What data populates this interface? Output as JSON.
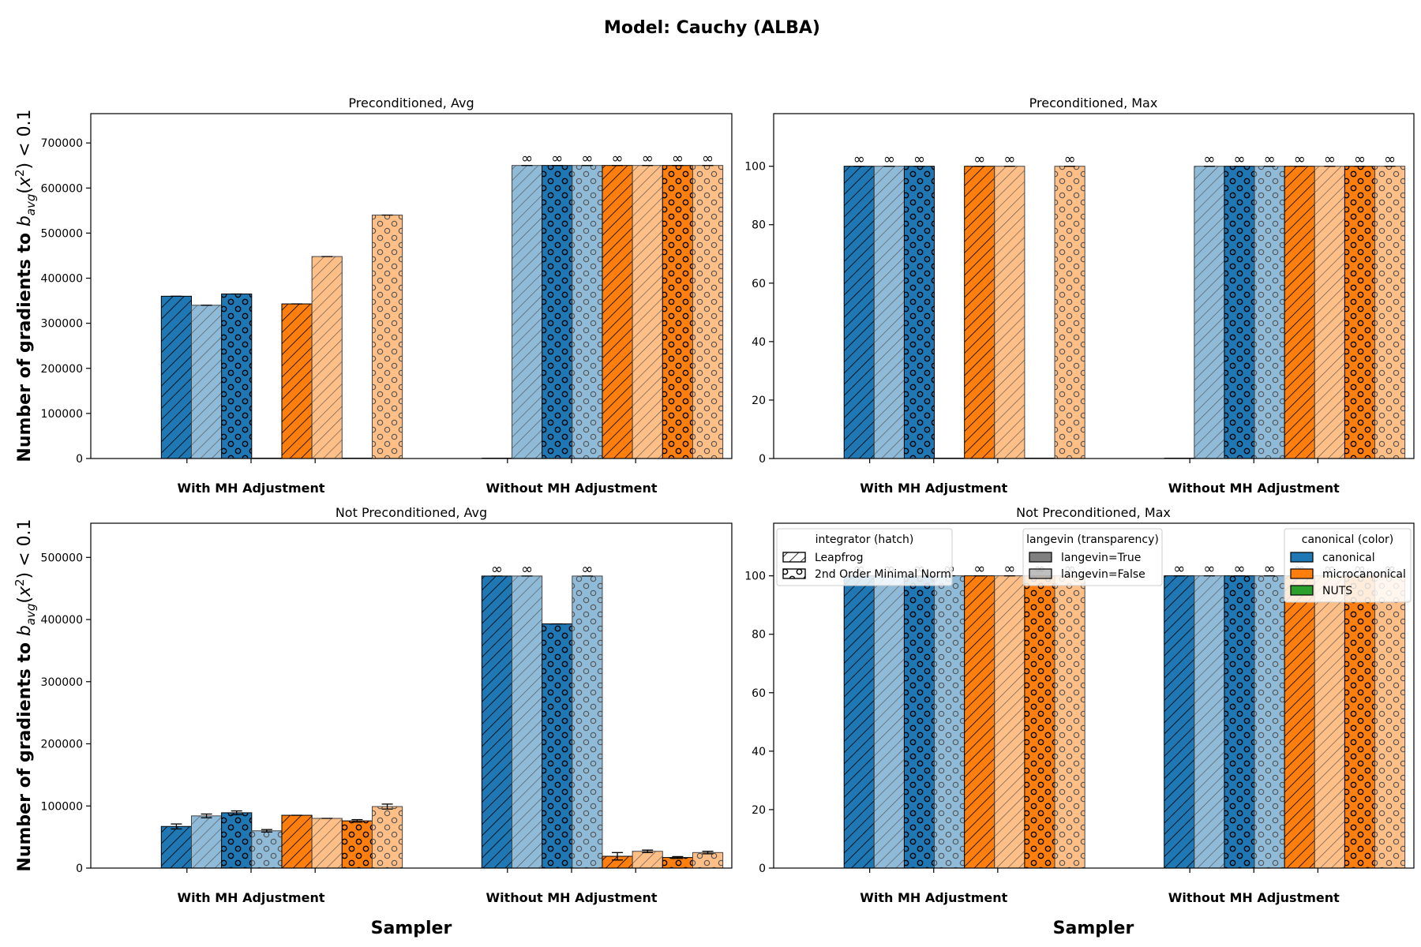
{
  "figure": {
    "title": "Model: Cauchy (ALBA)"
  },
  "colors": {
    "canonical": "#1f77b4",
    "canonical_light": "#8fbbd9",
    "microcanonical": "#ff7f0e",
    "microcanonical_light": "#ffbf86",
    "nuts": "#2ca02c"
  },
  "chart_data": [
    {
      "type": "bar",
      "title": "Preconditioned, Avg",
      "xlabel": "",
      "ylabel": "Number of gradients to b_avg(x²) < 0.1",
      "categories": [
        "With MH Adjustment",
        "Without MH Adjustment"
      ],
      "ylim": [
        0,
        765000
      ],
      "yticks": [
        0,
        100000,
        200000,
        300000,
        400000,
        500000,
        600000,
        700000
      ],
      "ytick_labels": [
        "0",
        "100000",
        "200000",
        "300000",
        "400000",
        "500000",
        "600000",
        "700000"
      ],
      "series": [
        {
          "color": "canonical",
          "hatch": "leapfrog",
          "langevin": true,
          "values": [
            360000,
            0
          ],
          "infinite": [
            false,
            false
          ],
          "error": [
            0,
            0
          ]
        },
        {
          "color": "canonical",
          "hatch": "leapfrog",
          "langevin": false,
          "values": [
            340000,
            650000
          ],
          "infinite": [
            false,
            true
          ],
          "error": [
            0,
            0
          ]
        },
        {
          "color": "canonical",
          "hatch": "minimal_norm",
          "langevin": true,
          "values": [
            365000,
            650000
          ],
          "infinite": [
            false,
            true
          ],
          "error": [
            0,
            0
          ]
        },
        {
          "color": "canonical",
          "hatch": "minimal_norm",
          "langevin": false,
          "values": [
            0,
            650000
          ],
          "infinite": [
            false,
            true
          ],
          "error": [
            0,
            0
          ]
        },
        {
          "color": "microcanonical",
          "hatch": "leapfrog",
          "langevin": true,
          "values": [
            343000,
            650000
          ],
          "infinite": [
            false,
            true
          ],
          "error": [
            0,
            0
          ]
        },
        {
          "color": "microcanonical",
          "hatch": "leapfrog",
          "langevin": false,
          "values": [
            448000,
            650000
          ],
          "infinite": [
            false,
            true
          ],
          "error": [
            0,
            0
          ]
        },
        {
          "color": "microcanonical",
          "hatch": "minimal_norm",
          "langevin": true,
          "values": [
            0,
            650000
          ],
          "infinite": [
            false,
            true
          ],
          "error": [
            0,
            0
          ]
        },
        {
          "color": "microcanonical",
          "hatch": "minimal_norm",
          "langevin": false,
          "values": [
            540000,
            650000
          ],
          "infinite": [
            false,
            true
          ],
          "error": [
            0,
            0
          ]
        }
      ]
    },
    {
      "type": "bar",
      "title": "Preconditioned, Max",
      "xlabel": "",
      "ylabel": "",
      "categories": [
        "With MH Adjustment",
        "Without MH Adjustment"
      ],
      "ylim": [
        0,
        118
      ],
      "yticks": [
        0,
        20,
        40,
        60,
        80,
        100
      ],
      "ytick_labels": [
        "0",
        "20",
        "40",
        "60",
        "80",
        "100"
      ],
      "series": [
        {
          "color": "canonical",
          "hatch": "leapfrog",
          "langevin": true,
          "values": [
            100,
            0
          ],
          "infinite": [
            true,
            false
          ],
          "error": [
            0,
            0
          ]
        },
        {
          "color": "canonical",
          "hatch": "leapfrog",
          "langevin": false,
          "values": [
            100,
            100
          ],
          "infinite": [
            true,
            true
          ],
          "error": [
            0,
            0
          ]
        },
        {
          "color": "canonical",
          "hatch": "minimal_norm",
          "langevin": true,
          "values": [
            100,
            100
          ],
          "infinite": [
            true,
            true
          ],
          "error": [
            0,
            0
          ]
        },
        {
          "color": "canonical",
          "hatch": "minimal_norm",
          "langevin": false,
          "values": [
            0,
            100
          ],
          "infinite": [
            false,
            true
          ],
          "error": [
            0,
            0
          ]
        },
        {
          "color": "microcanonical",
          "hatch": "leapfrog",
          "langevin": true,
          "values": [
            100,
            100
          ],
          "infinite": [
            true,
            true
          ],
          "error": [
            0,
            0
          ]
        },
        {
          "color": "microcanonical",
          "hatch": "leapfrog",
          "langevin": false,
          "values": [
            100,
            100
          ],
          "infinite": [
            true,
            true
          ],
          "error": [
            0,
            0
          ]
        },
        {
          "color": "microcanonical",
          "hatch": "minimal_norm",
          "langevin": true,
          "values": [
            0,
            100
          ],
          "infinite": [
            false,
            true
          ],
          "error": [
            0,
            0
          ]
        },
        {
          "color": "microcanonical",
          "hatch": "minimal_norm",
          "langevin": false,
          "values": [
            100,
            100
          ],
          "infinite": [
            true,
            true
          ],
          "error": [
            0,
            0
          ]
        }
      ]
    },
    {
      "type": "bar",
      "title": "Not Preconditioned, Avg",
      "xlabel": "Sampler",
      "ylabel": "Number of gradients to b_avg(x²) < 0.1",
      "categories": [
        "With MH Adjustment",
        "Without MH Adjustment"
      ],
      "ylim": [
        0,
        555000
      ],
      "yticks": [
        0,
        100000,
        200000,
        300000,
        400000,
        500000
      ],
      "ytick_labels": [
        "0",
        "100000",
        "200000",
        "300000",
        "400000",
        "500000"
      ],
      "series": [
        {
          "color": "canonical",
          "hatch": "leapfrog",
          "langevin": true,
          "values": [
            67000,
            470000
          ],
          "infinite": [
            false,
            true
          ],
          "error": [
            4000,
            0
          ]
        },
        {
          "color": "canonical",
          "hatch": "leapfrog",
          "langevin": false,
          "values": [
            84000,
            470000
          ],
          "infinite": [
            false,
            true
          ],
          "error": [
            3000,
            0
          ]
        },
        {
          "color": "canonical",
          "hatch": "minimal_norm",
          "langevin": true,
          "values": [
            89000,
            393000
          ],
          "infinite": [
            false,
            false
          ],
          "error": [
            3000,
            0
          ]
        },
        {
          "color": "canonical",
          "hatch": "minimal_norm",
          "langevin": false,
          "values": [
            60000,
            470000
          ],
          "infinite": [
            false,
            true
          ],
          "error": [
            2000,
            0
          ]
        },
        {
          "color": "microcanonical",
          "hatch": "leapfrog",
          "langevin": true,
          "values": [
            85000,
            19000
          ],
          "infinite": [
            false,
            false
          ],
          "error": [
            0,
            6000
          ]
        },
        {
          "color": "microcanonical",
          "hatch": "leapfrog",
          "langevin": false,
          "values": [
            80000,
            27000
          ],
          "infinite": [
            false,
            false
          ],
          "error": [
            0,
            2000
          ]
        },
        {
          "color": "microcanonical",
          "hatch": "minimal_norm",
          "langevin": true,
          "values": [
            76000,
            17000
          ],
          "infinite": [
            false,
            false
          ],
          "error": [
            2000,
            1500
          ]
        },
        {
          "color": "microcanonical",
          "hatch": "minimal_norm",
          "langevin": false,
          "values": [
            99000,
            25000
          ],
          "infinite": [
            false,
            false
          ],
          "error": [
            4000,
            2000
          ]
        }
      ]
    },
    {
      "type": "bar",
      "title": "Not Preconditioned, Max",
      "xlabel": "Sampler",
      "ylabel": "",
      "categories": [
        "With MH Adjustment",
        "Without MH Adjustment"
      ],
      "ylim": [
        0,
        118
      ],
      "yticks": [
        0,
        20,
        40,
        60,
        80,
        100
      ],
      "ytick_labels": [
        "0",
        "20",
        "40",
        "60",
        "80",
        "100"
      ],
      "series": [
        {
          "color": "canonical",
          "hatch": "leapfrog",
          "langevin": true,
          "values": [
            100,
            100
          ],
          "infinite": [
            true,
            true
          ],
          "error": [
            0,
            0
          ]
        },
        {
          "color": "canonical",
          "hatch": "leapfrog",
          "langevin": false,
          "values": [
            100,
            100
          ],
          "infinite": [
            true,
            true
          ],
          "error": [
            0,
            0
          ]
        },
        {
          "color": "canonical",
          "hatch": "minimal_norm",
          "langevin": true,
          "values": [
            100,
            100
          ],
          "infinite": [
            true,
            true
          ],
          "error": [
            0,
            0
          ]
        },
        {
          "color": "canonical",
          "hatch": "minimal_norm",
          "langevin": false,
          "values": [
            100,
            100
          ],
          "infinite": [
            true,
            true
          ],
          "error": [
            0,
            0
          ]
        },
        {
          "color": "microcanonical",
          "hatch": "leapfrog",
          "langevin": true,
          "values": [
            100,
            100
          ],
          "infinite": [
            true,
            true
          ],
          "error": [
            0,
            0
          ]
        },
        {
          "color": "microcanonical",
          "hatch": "leapfrog",
          "langevin": false,
          "values": [
            100,
            100
          ],
          "infinite": [
            true,
            true
          ],
          "error": [
            0,
            0
          ]
        },
        {
          "color": "microcanonical",
          "hatch": "minimal_norm",
          "langevin": true,
          "values": [
            100,
            100
          ],
          "infinite": [
            true,
            true
          ],
          "error": [
            0,
            0
          ]
        },
        {
          "color": "microcanonical",
          "hatch": "minimal_norm",
          "langevin": false,
          "values": [
            100,
            100
          ],
          "infinite": [
            true,
            true
          ],
          "error": [
            0,
            0
          ]
        }
      ],
      "legends": [
        {
          "title": "integrator (hatch)",
          "entries": [
            {
              "label": "Leapfrog",
              "hatch": "leapfrog"
            },
            {
              "label": "2nd Order Minimal Norm",
              "hatch": "minimal_norm"
            }
          ]
        },
        {
          "title": "langevin (transparency)",
          "entries": [
            {
              "label": "langevin=True",
              "alpha": 1.0
            },
            {
              "label": "langevin=False",
              "alpha": 0.5
            }
          ]
        },
        {
          "title": "canonical (color)",
          "entries": [
            {
              "label": "canonical",
              "color": "canonical"
            },
            {
              "label": "microcanonical",
              "color": "microcanonical"
            },
            {
              "label": "NUTS",
              "color": "nuts"
            }
          ]
        }
      ]
    }
  ]
}
